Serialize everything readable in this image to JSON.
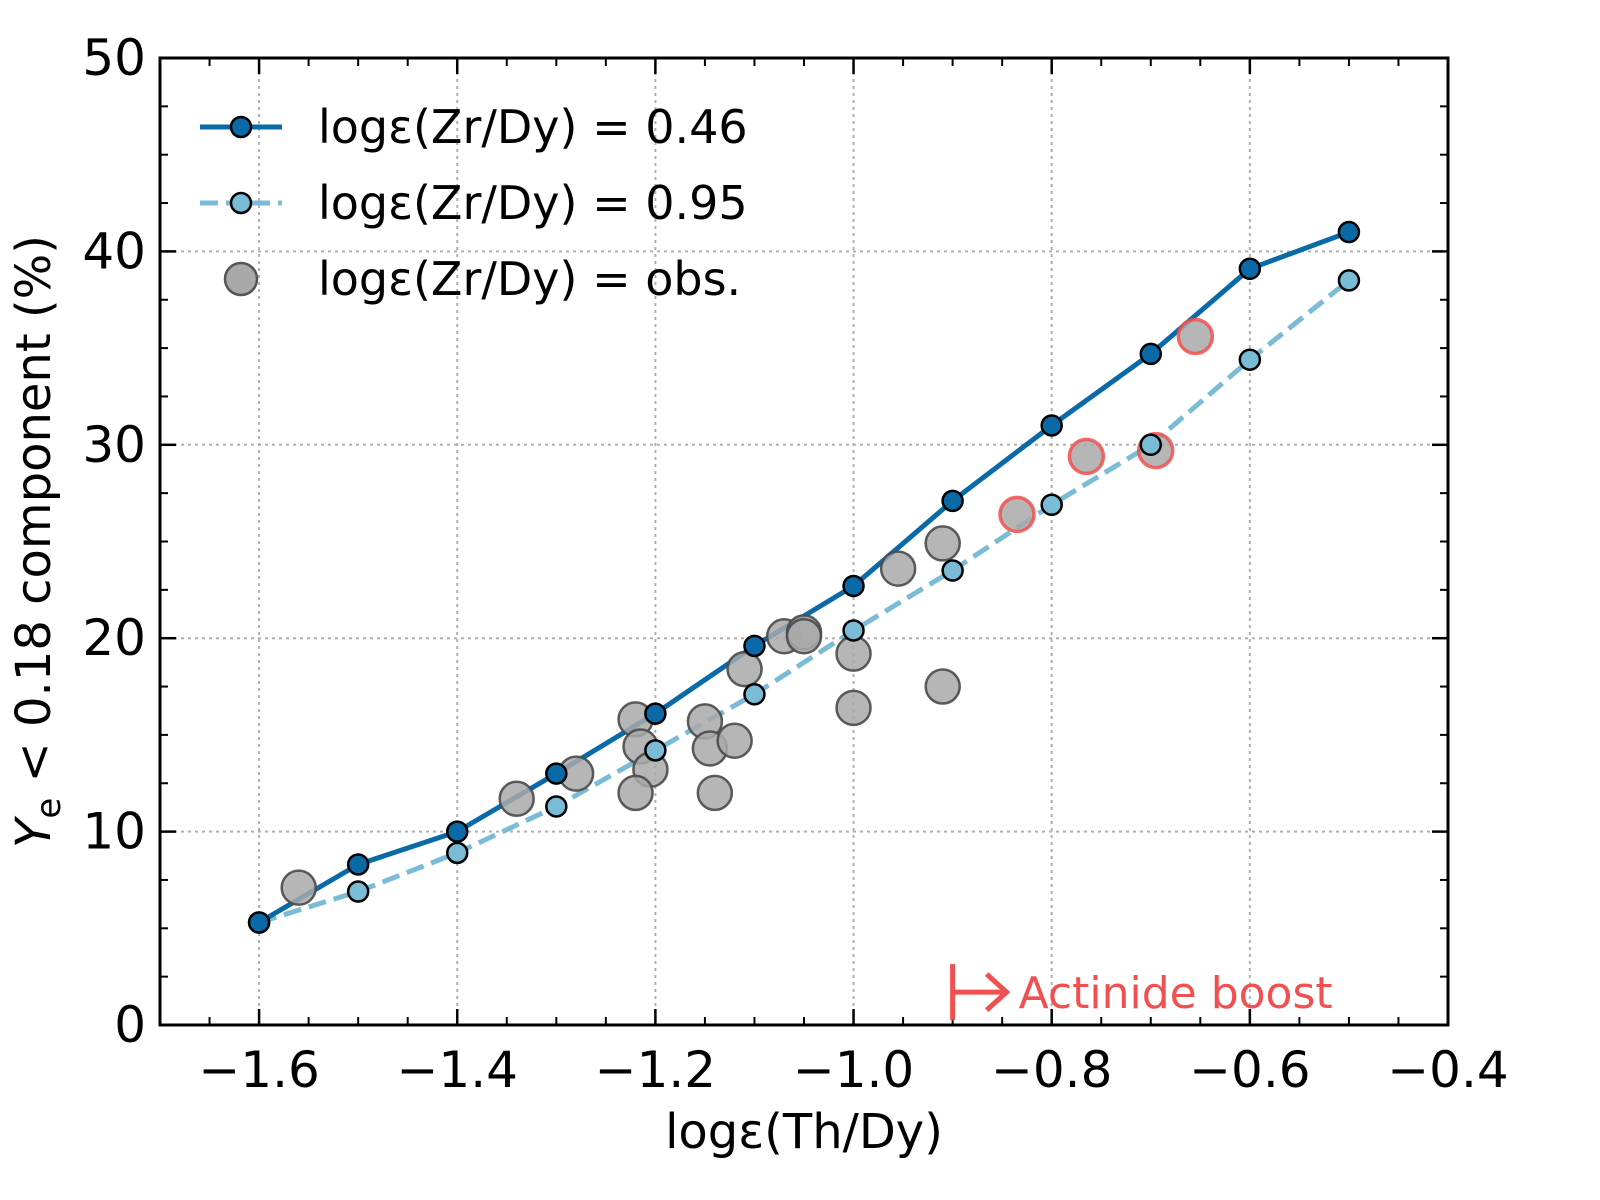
{
  "chart_data": {
    "type": "scatter",
    "xlabel": "logε(Th/Dy)",
    "ylabel": "Ye < 0.18 component (%)",
    "ylabel_parts": {
      "symbol": "Y",
      "subscript": "e",
      "rest": " < 0.18 component (%)"
    },
    "xlim": [
      -1.7,
      -0.4
    ],
    "ylim": [
      0,
      50
    ],
    "xticks": [
      -1.6,
      -1.4,
      -1.2,
      -1.0,
      -0.8,
      -0.6,
      -0.4
    ],
    "xtick_labels": [
      "−1.6",
      "−1.4",
      "−1.2",
      "−1.0",
      "−0.8",
      "−0.6",
      "−0.4"
    ],
    "yticks": [
      0,
      10,
      20,
      30,
      40,
      50
    ],
    "ytick_labels": [
      "0",
      "10",
      "20",
      "30",
      "40",
      "50"
    ],
    "grid": true,
    "legend_position": "top-left",
    "series": [
      {
        "name": "logε(Zr/Dy) = 0.46",
        "style": "solid-line-markers",
        "color": "#0a6aa8",
        "x": [
          -1.6,
          -1.5,
          -1.4,
          -1.3,
          -1.2,
          -1.1,
          -1.0,
          -0.9,
          -0.8,
          -0.7,
          -0.6,
          -0.5
        ],
        "y": [
          5.3,
          8.3,
          10.0,
          13.0,
          16.1,
          19.6,
          22.7,
          27.1,
          31.0,
          34.7,
          39.1,
          41.0
        ]
      },
      {
        "name": "logε(Zr/Dy) = 0.95",
        "style": "dashed-line-markers",
        "color": "#7abbd6",
        "x": [
          -1.6,
          -1.5,
          -1.4,
          -1.3,
          -1.2,
          -1.1,
          -1.0,
          -0.9,
          -0.8,
          -0.7,
          -0.6,
          -0.5
        ],
        "y": [
          5.3,
          6.9,
          8.9,
          11.3,
          14.2,
          17.1,
          20.4,
          23.5,
          26.9,
          30.0,
          34.4,
          38.5
        ]
      },
      {
        "name": "logε(Zr/Dy) = obs.",
        "style": "scatter",
        "color": "#a9a9a9",
        "highlight_color": "#f05050",
        "points": [
          {
            "x": -1.56,
            "y": 7.1,
            "highlight": false
          },
          {
            "x": -1.34,
            "y": 11.7,
            "highlight": false
          },
          {
            "x": -1.28,
            "y": 13.0,
            "highlight": false
          },
          {
            "x": -1.22,
            "y": 15.8,
            "highlight": false
          },
          {
            "x": -1.215,
            "y": 14.4,
            "highlight": false
          },
          {
            "x": -1.205,
            "y": 13.2,
            "highlight": false
          },
          {
            "x": -1.22,
            "y": 12.0,
            "highlight": false
          },
          {
            "x": -1.15,
            "y": 15.7,
            "highlight": false
          },
          {
            "x": -1.145,
            "y": 14.3,
            "highlight": false
          },
          {
            "x": -1.14,
            "y": 12.0,
            "highlight": false
          },
          {
            "x": -1.12,
            "y": 14.7,
            "highlight": false
          },
          {
            "x": -1.11,
            "y": 18.4,
            "highlight": false
          },
          {
            "x": -1.07,
            "y": 20.1,
            "highlight": false
          },
          {
            "x": -1.05,
            "y": 20.3,
            "highlight": false
          },
          {
            "x": -1.05,
            "y": 20.1,
            "highlight": false
          },
          {
            "x": -1.0,
            "y": 19.2,
            "highlight": false
          },
          {
            "x": -1.0,
            "y": 16.4,
            "highlight": false
          },
          {
            "x": -0.955,
            "y": 23.6,
            "highlight": false
          },
          {
            "x": -0.91,
            "y": 24.9,
            "highlight": false
          },
          {
            "x": -0.91,
            "y": 17.5,
            "highlight": false
          },
          {
            "x": -0.835,
            "y": 26.4,
            "highlight": true
          },
          {
            "x": -0.765,
            "y": 29.4,
            "highlight": true
          },
          {
            "x": -0.695,
            "y": 29.7,
            "highlight": true
          },
          {
            "x": -0.655,
            "y": 35.6,
            "highlight": true
          }
        ]
      }
    ],
    "annotations": [
      {
        "text": "Actinide boost",
        "x": -0.9,
        "y": 1.7,
        "color": "#f05050",
        "symbol": "arrow-right-from-bar"
      }
    ]
  }
}
